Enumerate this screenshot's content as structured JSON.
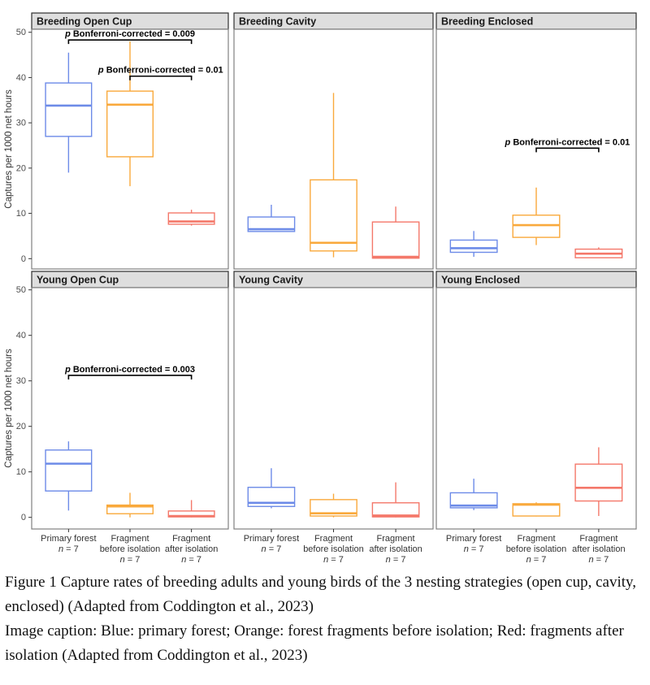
{
  "chart_data": {
    "type": "boxplot",
    "ylabel": "Captures per 1000 net hours",
    "ylim": [
      0,
      50
    ],
    "yticks": [
      0,
      10,
      20,
      30,
      40,
      50
    ],
    "facet_grid": {
      "rows": [
        "Breeding",
        "Young"
      ],
      "cols": [
        "Open Cup",
        "Cavity",
        "Enclosed"
      ]
    },
    "series": [
      {
        "name": "Primary forest",
        "color": "#6D8BE8",
        "label_lines": [
          "Primary forest"
        ],
        "n_label": "n = 7"
      },
      {
        "name": "Fragment before isolation",
        "color": "#F9A93C",
        "label_lines": [
          "Fragment",
          "before isolation"
        ],
        "n_label": "n = 7"
      },
      {
        "name": "Fragment after isolation",
        "color": "#F4786A",
        "label_lines": [
          "Fragment",
          "after isolation"
        ],
        "n_label": "n = 7"
      }
    ],
    "stats_format": [
      "whisker_low",
      "q1",
      "median",
      "q3",
      "whisker_high"
    ],
    "panels": [
      {
        "title": "Breeding Open Cup",
        "boxes": [
          [
            19,
            27,
            33.8,
            38.8,
            45.5
          ],
          [
            16,
            22.5,
            34,
            37,
            48
          ],
          [
            7.3,
            7.6,
            8.2,
            10.1,
            10.8
          ]
        ],
        "annotations": [
          {
            "label": "p Bonferroni-corrected = 0.009",
            "from": 0,
            "to": 2,
            "y": 48.3
          },
          {
            "label": "p Bonferroni-corrected = 0.01",
            "from": 1,
            "to": 2,
            "y": 40.3
          }
        ]
      },
      {
        "title": "Breeding Cavity",
        "boxes": [
          [
            6,
            6,
            6.5,
            9.2,
            11.9
          ],
          [
            0.3,
            1.7,
            3.5,
            17.4,
            36.6
          ],
          [
            0.1,
            0.1,
            0.4,
            8.1,
            11.5
          ]
        ],
        "annotations": []
      },
      {
        "title": "Breeding Enclosed",
        "boxes": [
          [
            0.4,
            1.4,
            2.3,
            4.1,
            6.1
          ],
          [
            3,
            4.7,
            7.4,
            9.6,
            15.7
          ],
          [
            0.2,
            0.2,
            1.1,
            2.1,
            2.5
          ]
        ],
        "annotations": [
          {
            "label": "p Bonferroni-corrected = 0.01",
            "from": 1,
            "to": 2,
            "y": 24.4
          }
        ]
      },
      {
        "title": "Young Open Cup",
        "boxes": [
          [
            1.5,
            5.8,
            11.8,
            14.8,
            16.7
          ],
          [
            0,
            0.8,
            2.4,
            2.7,
            5.4
          ],
          [
            0,
            0.1,
            0.3,
            1.4,
            3.8
          ]
        ],
        "annotations": [
          {
            "label": "p Bonferroni-corrected = 0.003",
            "from": 0,
            "to": 2,
            "y": 31.2
          }
        ]
      },
      {
        "title": "Young Cavity",
        "boxes": [
          [
            2,
            2.4,
            3.2,
            6.6,
            10.8
          ],
          [
            0,
            0.3,
            0.9,
            3.9,
            5.2
          ],
          [
            0,
            0.1,
            0.4,
            3.2,
            7.7
          ]
        ],
        "annotations": []
      },
      {
        "title": "Young Enclosed",
        "boxes": [
          [
            1.6,
            2.1,
            2.6,
            5.4,
            8.5
          ],
          [
            0.2,
            0.3,
            2.8,
            3,
            3.3
          ],
          [
            0.3,
            3.6,
            6.5,
            11.7,
            15.4
          ]
        ],
        "annotations": []
      }
    ],
    "theme": {
      "strip_bg": "#DEDEDE",
      "strip_border": "#2F2F2F",
      "panel_border": "#808080",
      "box_fill": "#FFFFFF",
      "annotation_color": "#000000",
      "axis_text_color": "#4D4D4D",
      "tick_color": "#333333"
    }
  },
  "caption": {
    "figure_text": "Figure 1 Capture rates of breeding adults and young birds of the 3 nesting strategies (open cup, cavity, enclosed) (Adapted from Coddington et al., 2023)",
    "image_caption_text": "Image caption: Blue: primary forest; Orange: forest fragments before isolation; Red: fragments after isolation (Adapted from Coddington et al., 2023)"
  }
}
